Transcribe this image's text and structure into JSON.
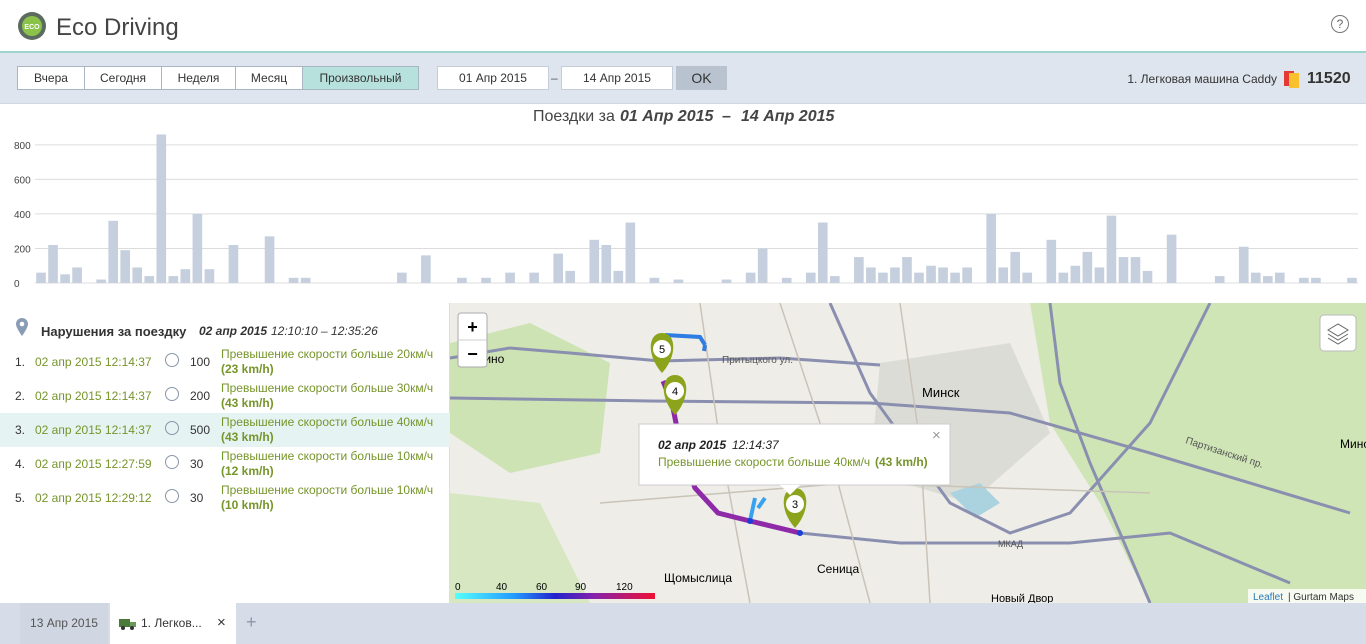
{
  "header": {
    "logo": "ECO",
    "title": "Eco Driving",
    "help": "?"
  },
  "toolbar": {
    "periods": [
      "Вчера",
      "Сегодня",
      "Неделя",
      "Месяц",
      "Произвольный"
    ],
    "date_from": "01 Апр 2015",
    "dash": "–",
    "date_to": "14 Апр 2015",
    "ok": "OK",
    "unit": "1. Легковая машина Caddy",
    "score": "11520"
  },
  "chart_data": {
    "type": "bar",
    "title": {
      "text": "Поездки за",
      "from": "01 Апр 2015",
      "separator": "–",
      "to": "14 Апр 2015"
    },
    "categories": [
      null,
      null,
      null,
      null,
      null,
      null,
      null,
      null,
      null,
      null,
      null,
      null,
      null,
      null,
      null,
      null,
      null,
      null,
      null,
      null,
      null,
      null,
      null,
      null,
      null,
      null,
      null,
      null,
      null,
      null,
      null,
      null,
      null,
      null,
      null,
      null,
      null,
      null,
      null,
      null,
      null,
      null,
      null,
      null,
      null,
      null,
      null,
      null,
      null,
      null,
      null,
      null,
      null,
      null,
      null,
      null,
      null,
      null,
      null,
      null,
      null,
      null,
      null,
      null,
      null,
      null,
      null,
      null,
      null,
      null,
      null,
      null,
      null,
      null,
      null,
      null,
      null,
      null,
      null,
      null,
      null,
      null,
      null,
      null,
      null,
      null,
      null,
      null,
      null,
      null,
      null,
      null,
      null,
      null,
      null,
      null,
      null,
      null,
      null,
      null,
      null,
      null,
      null,
      null,
      null,
      null,
      null,
      null,
      null,
      null
    ],
    "values": [
      60,
      220,
      50,
      90,
      null,
      20,
      360,
      190,
      90,
      40,
      860,
      40,
      80,
      400,
      80,
      null,
      220,
      null,
      null,
      270,
      null,
      30,
      30,
      null,
      null,
      null,
      null,
      null,
      null,
      null,
      60,
      null,
      160,
      null,
      null,
      30,
      null,
      30,
      null,
      60,
      null,
      60,
      null,
      170,
      70,
      null,
      250,
      220,
      70,
      350,
      null,
      30,
      null,
      20,
      null,
      null,
      null,
      20,
      null,
      60,
      200,
      null,
      30,
      null,
      60,
      350,
      40,
      null,
      150,
      90,
      60,
      90,
      150,
      60,
      100,
      90,
      60,
      90,
      null,
      400,
      90,
      180,
      60,
      null,
      250,
      60,
      100,
      180,
      90,
      390,
      150,
      150,
      70,
      null,
      280,
      null,
      null,
      null,
      40,
      null,
      210,
      60,
      40,
      60,
      null,
      30,
      30,
      null,
      null,
      30
    ],
    "color": "#c6cfdd",
    "ylim": [
      0,
      880
    ],
    "yticks": [
      0,
      200,
      400,
      600,
      800
    ],
    "grid": true
  },
  "violations": {
    "title": "Нарушения за поездку",
    "trip_date": "02 апр 2015",
    "trip_time": "12:10:10 – 12:35:26",
    "rows": [
      {
        "n": "1.",
        "time": "02 апр 2015 12:14:37",
        "penalty": 100,
        "desc": "Превышение скорости больше 20км/ч",
        "excess": "(23 km/h)"
      },
      {
        "n": "2.",
        "time": "02 апр 2015 12:14:37",
        "penalty": 200,
        "desc": "Превышение скорости больше 30км/ч",
        "excess": "(43 km/h)"
      },
      {
        "n": "3.",
        "time": "02 апр 2015 12:14:37",
        "penalty": 500,
        "desc": "Превышение скорости больше 40км/ч",
        "excess": "(43 km/h)"
      },
      {
        "n": "4.",
        "time": "02 апр 2015 12:27:59",
        "penalty": 30,
        "desc": "Превышение скорости больше 10км/ч",
        "excess": "(12 km/h)"
      },
      {
        "n": "5.",
        "time": "02 апр 2015 12:29:12",
        "penalty": 30,
        "desc": "Превышение скорости больше 10км/ч",
        "excess": "(10 km/h)"
      }
    ]
  },
  "map": {
    "zoom_in": "+",
    "zoom_out": "−",
    "places": [
      "атежино",
      "Минск",
      "Щомыслица",
      "Сеница",
      "Новый Двор",
      "Минс",
      "Притыцкого ул.",
      "Партизанский пр.",
      "МКАД"
    ],
    "markers": [
      "5",
      "4",
      "3"
    ],
    "popup": {
      "date": "02 апр 2015",
      "time": "12:14:37",
      "desc": "Превышение скорости больше 40км/ч",
      "excess": "(43 km/h)",
      "close": "×"
    },
    "legend": [
      "0",
      "40",
      "60",
      "90",
      "120"
    ],
    "attribution": {
      "leaflet": "Leaflet",
      "rest": "| Gurtam Maps"
    }
  },
  "tabs": {
    "items": [
      "13 Апр 2015",
      "1. Легков..."
    ],
    "close": "×",
    "add": "+"
  }
}
